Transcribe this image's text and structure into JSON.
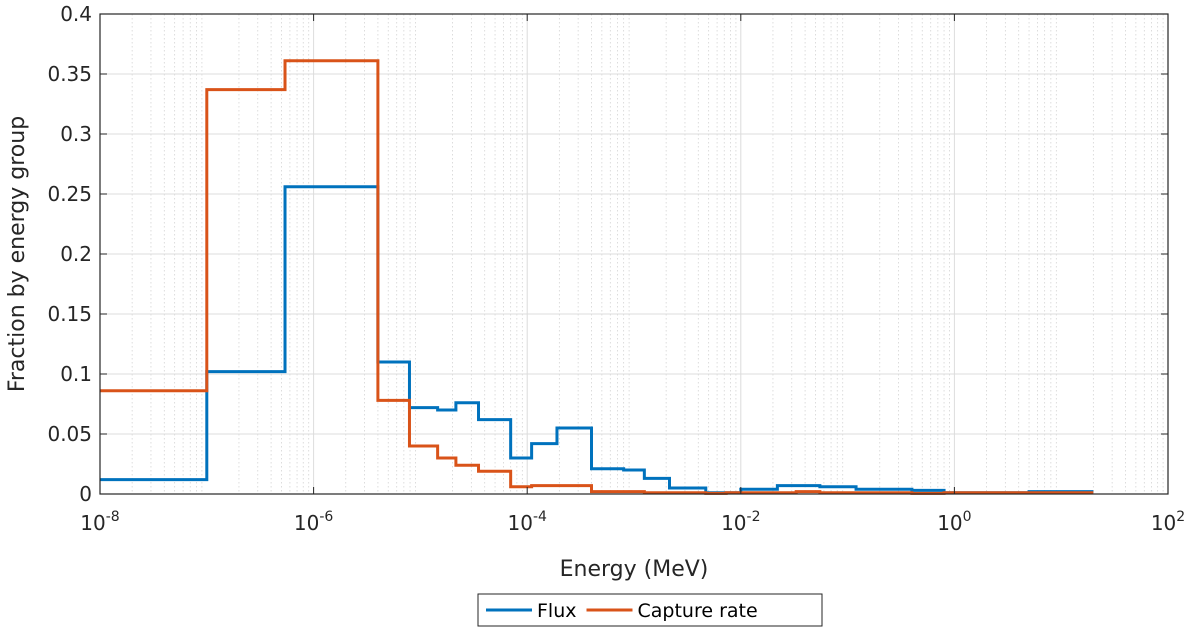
{
  "chart_data": {
    "type": "line",
    "step": true,
    "xlabel": "Energy (MeV)",
    "ylabel": "Fraction by energy group",
    "xscale": "log",
    "xlim": [
      1e-08,
      100
    ],
    "ylim": [
      0,
      0.4
    ],
    "grid": true,
    "minor_grid": true,
    "legend_position": "bottom-outside",
    "x_ticks": [
      {
        "base": "10",
        "exp": "-8",
        "value": 1e-08
      },
      {
        "base": "10",
        "exp": "-6",
        "value": 1e-06
      },
      {
        "base": "10",
        "exp": "-4",
        "value": 0.0001
      },
      {
        "base": "10",
        "exp": "-2",
        "value": 0.01
      },
      {
        "base": "10",
        "exp": "0",
        "value": 1
      },
      {
        "base": "10",
        "exp": "2",
        "value": 100
      }
    ],
    "y_ticks": [
      "0",
      "0.05",
      "0.1",
      "0.15",
      "0.2",
      "0.25",
      "0.3",
      "0.35",
      "0.4"
    ],
    "y_tick_values": [
      0,
      0.05,
      0.1,
      0.15,
      0.2,
      0.25,
      0.3,
      0.35,
      0.4
    ],
    "series": [
      {
        "name": "Flux",
        "color": "#0072BD",
        "edges": [
          1e-08,
          1e-07,
          5.4e-07,
          4e-06,
          7.9e-06,
          1.45e-05,
          2.15e-05,
          3.5e-05,
          7e-05,
          0.00011,
          0.00019,
          0.0004,
          0.0008,
          0.00125,
          0.00215,
          0.0047,
          0.0073,
          0.01,
          0.022,
          0.033,
          0.055,
          0.12,
          0.2,
          0.4,
          0.8,
          1.35,
          3,
          5,
          8,
          20
        ],
        "values": [
          0.012,
          0.102,
          0.256,
          0.11,
          0.072,
          0.07,
          0.076,
          0.062,
          0.03,
          0.042,
          0.055,
          0.021,
          0.02,
          0.013,
          0.005,
          0.001,
          0.001,
          0.004,
          0.007,
          0.007,
          0.006,
          0.004,
          0.004,
          0.003,
          0.001,
          0.001,
          0.001,
          0.002,
          0.002
        ]
      },
      {
        "name": "Capture rate",
        "color": "#D95319",
        "edges": [
          1e-08,
          1e-07,
          5.4e-07,
          4e-06,
          7.9e-06,
          1.45e-05,
          2.15e-05,
          3.5e-05,
          7e-05,
          0.00011,
          0.00019,
          0.0004,
          0.0008,
          0.00125,
          0.00215,
          0.0047,
          0.0073,
          0.01,
          0.022,
          0.033,
          0.055,
          0.12,
          0.2,
          0.4,
          0.8,
          1.35,
          3,
          5,
          8,
          20
        ],
        "values": [
          0.086,
          0.337,
          0.361,
          0.078,
          0.04,
          0.03,
          0.024,
          0.019,
          0.006,
          0.007,
          0.007,
          0.002,
          0.002,
          0.001,
          0.001,
          0.0005,
          0.001,
          0.001,
          0.001,
          0.002,
          0.001,
          0.001,
          0.001,
          0.0005,
          0.001,
          0.001,
          0.001,
          0.001,
          0.001
        ]
      }
    ]
  }
}
